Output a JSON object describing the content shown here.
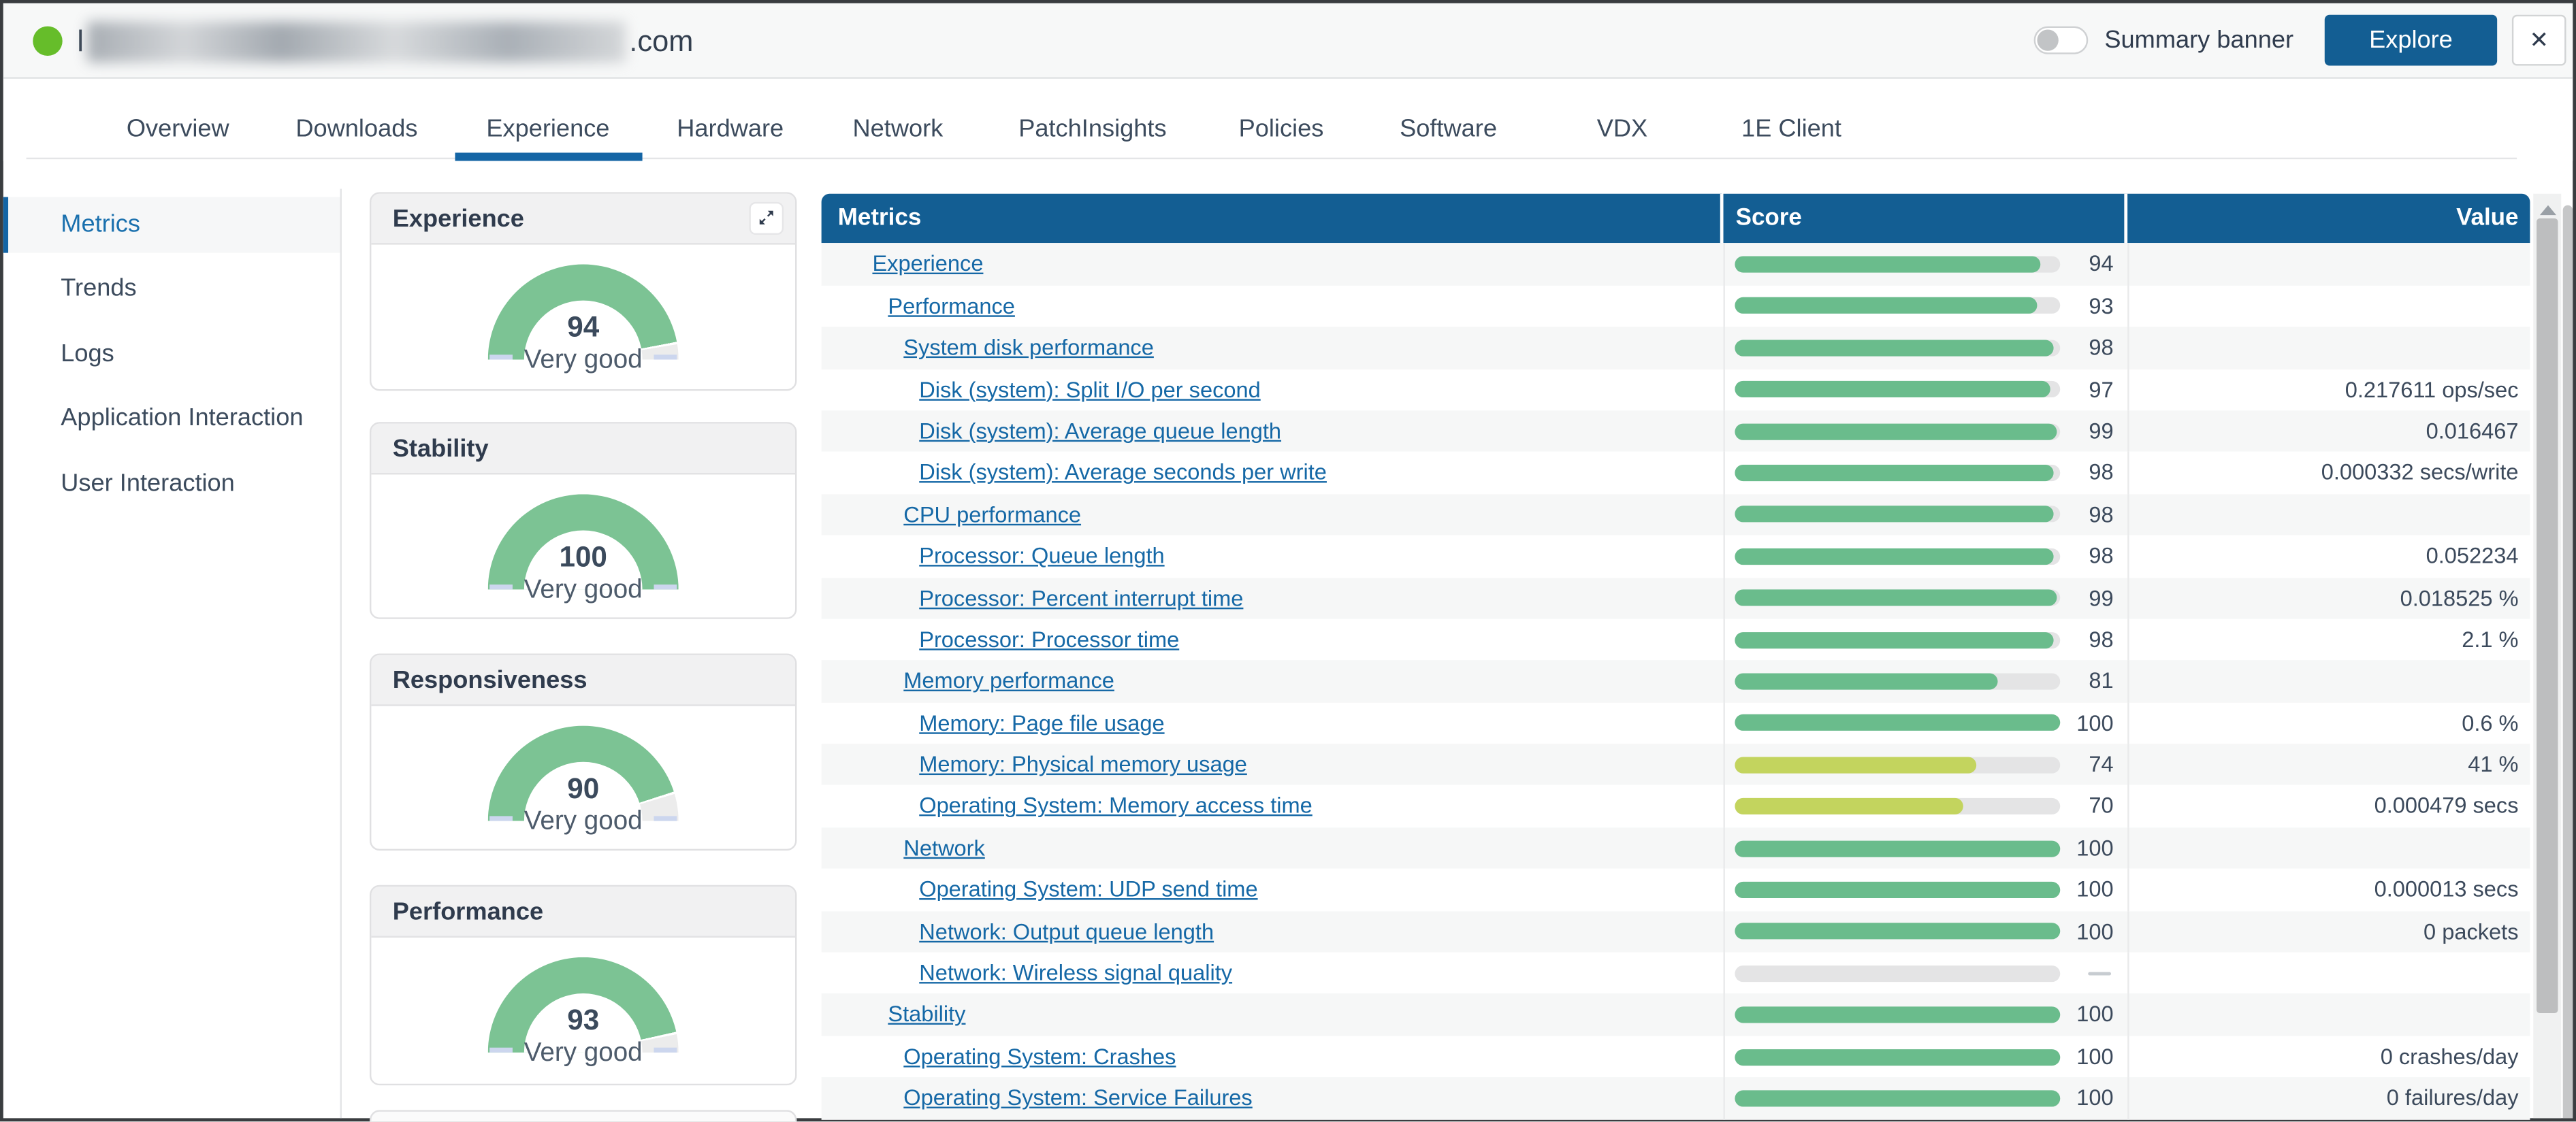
{
  "topbar": {
    "hostname_prefix": "l",
    "hostname_suffix": ".com",
    "summary_banner_label": "Summary banner",
    "explore_button": "Explore",
    "close_button": "✕"
  },
  "tabs": {
    "active": "Experience",
    "items": [
      "Overview",
      "Downloads",
      "Experience",
      "Hardware",
      "Network",
      "PatchInsights",
      "Policies",
      "Software",
      "VDX",
      "1E Client"
    ]
  },
  "sidebar": {
    "active": "Metrics",
    "items": [
      "Metrics",
      "Trends",
      "Logs",
      "Application Interaction",
      "User Interaction"
    ]
  },
  "cards": [
    {
      "title": "Experience",
      "score": 94,
      "rating": "Very good",
      "has_expand_button": true
    },
    {
      "title": "Stability",
      "score": 100,
      "rating": "Very good",
      "has_expand_button": false
    },
    {
      "title": "Responsiveness",
      "score": 90,
      "rating": "Very good",
      "has_expand_button": false
    },
    {
      "title": "Performance",
      "score": 93,
      "rating": "Very good",
      "has_expand_button": false
    }
  ],
  "table": {
    "columns": [
      "Metrics",
      "Score",
      "Value"
    ],
    "rows": [
      {
        "name": "Experience",
        "level": 0,
        "score": 94,
        "value": ""
      },
      {
        "name": "Performance",
        "level": 1,
        "score": 93,
        "value": ""
      },
      {
        "name": "System disk performance",
        "level": 2,
        "score": 98,
        "value": ""
      },
      {
        "name": "Disk (system): Split I/O per second",
        "level": 3,
        "score": 97,
        "value": "0.217611 ops/sec"
      },
      {
        "name": "Disk (system): Average queue length",
        "level": 3,
        "score": 99,
        "value": "0.016467"
      },
      {
        "name": "Disk (system): Average seconds per write",
        "level": 3,
        "score": 98,
        "value": "0.000332 secs/write"
      },
      {
        "name": "CPU performance",
        "level": 2,
        "score": 98,
        "value": ""
      },
      {
        "name": "Processor: Queue length",
        "level": 3,
        "score": 98,
        "value": "0.052234"
      },
      {
        "name": "Processor: Percent interrupt time",
        "level": 3,
        "score": 99,
        "value": "0.018525 %"
      },
      {
        "name": "Processor: Processor time",
        "level": 3,
        "score": 98,
        "value": "2.1 %"
      },
      {
        "name": "Memory performance",
        "level": 2,
        "score": 81,
        "value": ""
      },
      {
        "name": "Memory: Page file usage",
        "level": 3,
        "score": 100,
        "value": "0.6 %"
      },
      {
        "name": "Memory: Physical memory usage",
        "level": 3,
        "score": 74,
        "value": "41 %"
      },
      {
        "name": "Operating System: Memory access time",
        "level": 3,
        "score": 70,
        "value": "0.000479 secs"
      },
      {
        "name": "Network",
        "level": 2,
        "score": 100,
        "value": ""
      },
      {
        "name": "Operating System: UDP send time",
        "level": 3,
        "score": 100,
        "value": "0.000013 secs"
      },
      {
        "name": "Network: Output queue length",
        "level": 3,
        "score": 100,
        "value": "0 packets"
      },
      {
        "name": "Network: Wireless signal quality",
        "level": 3,
        "score": null,
        "value": ""
      },
      {
        "name": "Stability",
        "level": 1,
        "score": 100,
        "value": ""
      },
      {
        "name": "Operating System: Crashes",
        "level": 2,
        "score": 100,
        "value": "0 crashes/day"
      },
      {
        "name": "Operating System: Service Failures",
        "level": 2,
        "score": 100,
        "value": "0 failures/day"
      }
    ]
  },
  "colors": {
    "status_green": "#66bd2a",
    "accent_blue": "#135e93",
    "tab_underline_blue": "#1465a5",
    "link_blue": "#1568a6",
    "bar_green": "#6abc8c",
    "bar_lime": "#c3d45e",
    "bar_track": "#e4e4e5",
    "gauge_green": "#7cc394",
    "gauge_track": "#ececec"
  }
}
